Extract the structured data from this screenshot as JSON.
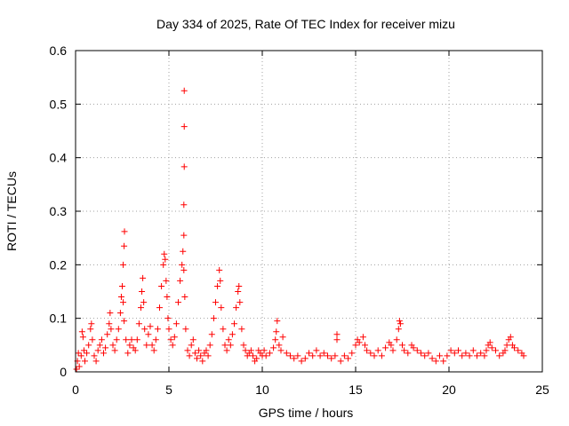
{
  "chart_data": {
    "type": "scatter",
    "title": "Day 334 of 2025, Rate Of TEC Index for receiver mizu",
    "xlabel": "GPS time / hours",
    "ylabel": "ROTI / TECUs",
    "xlim": [
      0,
      25
    ],
    "ylim": [
      0,
      0.6
    ],
    "xticks": [
      0,
      5,
      10,
      15,
      20,
      25
    ],
    "xtick_labels": [
      "0",
      "5",
      "10",
      "15",
      "20",
      "25"
    ],
    "yticks": [
      0,
      0.1,
      0.2,
      0.3,
      0.4,
      0.5,
      0.6
    ],
    "ytick_labels": [
      "0",
      "0.1",
      "0.2",
      "0.3",
      "0.4",
      "0.5",
      "0.6"
    ],
    "grid": true,
    "marker": "plus",
    "color": "#ff0000",
    "series": [
      {
        "points": [
          [
            0.05,
            0.005
          ],
          [
            0.1,
            0.02
          ],
          [
            0.15,
            0.035
          ],
          [
            0.2,
            0.01
          ],
          [
            0.3,
            0.03
          ],
          [
            0.35,
            0.075
          ],
          [
            0.4,
            0.065
          ],
          [
            0.45,
            0.04
          ],
          [
            0.5,
            0.02
          ],
          [
            0.6,
            0.035
          ],
          [
            0.7,
            0.05
          ],
          [
            0.8,
            0.08
          ],
          [
            0.85,
            0.09
          ],
          [
            0.9,
            0.06
          ],
          [
            1.0,
            0.03
          ],
          [
            1.1,
            0.02
          ],
          [
            1.2,
            0.04
          ],
          [
            1.3,
            0.05
          ],
          [
            1.4,
            0.06
          ],
          [
            1.5,
            0.035
          ],
          [
            1.6,
            0.045
          ],
          [
            1.7,
            0.07
          ],
          [
            1.8,
            0.09
          ],
          [
            1.85,
            0.11
          ],
          [
            1.9,
            0.08
          ],
          [
            2.0,
            0.05
          ],
          [
            2.1,
            0.04
          ],
          [
            2.2,
            0.06
          ],
          [
            2.3,
            0.08
          ],
          [
            2.4,
            0.11
          ],
          [
            2.45,
            0.14
          ],
          [
            2.5,
            0.16
          ],
          [
            2.55,
            0.13
          ],
          [
            2.6,
            0.095
          ],
          [
            2.55,
            0.2
          ],
          [
            2.6,
            0.235
          ],
          [
            2.62,
            0.262
          ],
          [
            2.7,
            0.06
          ],
          [
            2.8,
            0.035
          ],
          [
            2.9,
            0.05
          ],
          [
            3.0,
            0.06
          ],
          [
            3.1,
            0.045
          ],
          [
            3.2,
            0.04
          ],
          [
            3.3,
            0.06
          ],
          [
            3.4,
            0.09
          ],
          [
            3.5,
            0.12
          ],
          [
            3.55,
            0.15
          ],
          [
            3.6,
            0.175
          ],
          [
            3.65,
            0.13
          ],
          [
            3.7,
            0.08
          ],
          [
            3.8,
            0.05
          ],
          [
            3.9,
            0.07
          ],
          [
            4.0,
            0.085
          ],
          [
            4.1,
            0.05
          ],
          [
            4.2,
            0.04
          ],
          [
            4.3,
            0.06
          ],
          [
            4.4,
            0.08
          ],
          [
            4.5,
            0.12
          ],
          [
            4.6,
            0.16
          ],
          [
            4.7,
            0.2
          ],
          [
            4.75,
            0.22
          ],
          [
            4.8,
            0.21
          ],
          [
            4.85,
            0.17
          ],
          [
            4.9,
            0.14
          ],
          [
            4.95,
            0.1
          ],
          [
            5.0,
            0.08
          ],
          [
            5.1,
            0.06
          ],
          [
            5.2,
            0.05
          ],
          [
            5.3,
            0.065
          ],
          [
            5.4,
            0.09
          ],
          [
            5.5,
            0.13
          ],
          [
            5.6,
            0.17
          ],
          [
            5.7,
            0.2
          ],
          [
            5.75,
            0.225
          ],
          [
            5.8,
            0.19
          ],
          [
            5.85,
            0.14
          ],
          [
            5.8,
            0.255
          ],
          [
            5.8,
            0.312
          ],
          [
            5.82,
            0.383
          ],
          [
            5.82,
            0.458
          ],
          [
            5.82,
            0.525
          ],
          [
            5.9,
            0.08
          ],
          [
            6.0,
            0.04
          ],
          [
            6.1,
            0.03
          ],
          [
            6.2,
            0.05
          ],
          [
            6.3,
            0.06
          ],
          [
            6.4,
            0.035
          ],
          [
            6.5,
            0.025
          ],
          [
            6.6,
            0.04
          ],
          [
            6.7,
            0.03
          ],
          [
            6.8,
            0.02
          ],
          [
            6.9,
            0.035
          ],
          [
            7.0,
            0.04
          ],
          [
            7.1,
            0.03
          ],
          [
            7.2,
            0.05
          ],
          [
            7.3,
            0.07
          ],
          [
            7.4,
            0.1
          ],
          [
            7.5,
            0.13
          ],
          [
            7.6,
            0.16
          ],
          [
            7.7,
            0.19
          ],
          [
            7.75,
            0.17
          ],
          [
            7.8,
            0.12
          ],
          [
            7.9,
            0.08
          ],
          [
            8.0,
            0.05
          ],
          [
            8.1,
            0.04
          ],
          [
            8.2,
            0.06
          ],
          [
            8.3,
            0.05
          ],
          [
            8.4,
            0.07
          ],
          [
            8.5,
            0.09
          ],
          [
            8.6,
            0.12
          ],
          [
            8.7,
            0.15
          ],
          [
            8.75,
            0.16
          ],
          [
            8.8,
            0.13
          ],
          [
            8.9,
            0.08
          ],
          [
            9.0,
            0.05
          ],
          [
            9.1,
            0.04
          ],
          [
            9.2,
            0.03
          ],
          [
            9.3,
            0.035
          ],
          [
            9.4,
            0.04
          ],
          [
            9.5,
            0.03
          ],
          [
            9.6,
            0.02
          ],
          [
            9.7,
            0.025
          ],
          [
            9.8,
            0.04
          ],
          [
            9.9,
            0.035
          ],
          [
            10.0,
            0.03
          ],
          [
            10.1,
            0.04
          ],
          [
            10.2,
            0.03
          ],
          [
            10.4,
            0.035
          ],
          [
            10.6,
            0.045
          ],
          [
            10.7,
            0.06
          ],
          [
            10.75,
            0.075
          ],
          [
            10.8,
            0.095
          ],
          [
            10.9,
            0.05
          ],
          [
            11.0,
            0.04
          ],
          [
            11.1,
            0.065
          ],
          [
            11.3,
            0.035
          ],
          [
            11.5,
            0.03
          ],
          [
            11.7,
            0.025
          ],
          [
            11.9,
            0.03
          ],
          [
            12.1,
            0.02
          ],
          [
            12.3,
            0.025
          ],
          [
            12.5,
            0.035
          ],
          [
            12.7,
            0.03
          ],
          [
            12.9,
            0.04
          ],
          [
            13.1,
            0.03
          ],
          [
            13.3,
            0.035
          ],
          [
            13.5,
            0.03
          ],
          [
            13.7,
            0.025
          ],
          [
            13.9,
            0.03
          ],
          [
            14.0,
            0.07
          ],
          [
            14.0,
            0.06
          ],
          [
            14.2,
            0.02
          ],
          [
            14.4,
            0.03
          ],
          [
            14.6,
            0.025
          ],
          [
            14.8,
            0.035
          ],
          [
            15.0,
            0.05
          ],
          [
            15.1,
            0.06
          ],
          [
            15.2,
            0.055
          ],
          [
            15.4,
            0.065
          ],
          [
            15.5,
            0.05
          ],
          [
            15.6,
            0.04
          ],
          [
            15.8,
            0.035
          ],
          [
            16.0,
            0.03
          ],
          [
            16.2,
            0.04
          ],
          [
            16.4,
            0.03
          ],
          [
            16.6,
            0.045
          ],
          [
            16.8,
            0.055
          ],
          [
            16.9,
            0.05
          ],
          [
            17.0,
            0.04
          ],
          [
            17.2,
            0.06
          ],
          [
            17.3,
            0.08
          ],
          [
            17.35,
            0.095
          ],
          [
            17.4,
            0.09
          ],
          [
            17.5,
            0.05
          ],
          [
            17.6,
            0.04
          ],
          [
            17.8,
            0.035
          ],
          [
            18.0,
            0.05
          ],
          [
            18.1,
            0.045
          ],
          [
            18.3,
            0.04
          ],
          [
            18.5,
            0.035
          ],
          [
            18.7,
            0.03
          ],
          [
            18.9,
            0.035
          ],
          [
            19.1,
            0.025
          ],
          [
            19.3,
            0.02
          ],
          [
            19.5,
            0.03
          ],
          [
            19.7,
            0.02
          ],
          [
            19.9,
            0.03
          ],
          [
            20.1,
            0.04
          ],
          [
            20.3,
            0.035
          ],
          [
            20.5,
            0.04
          ],
          [
            20.7,
            0.03
          ],
          [
            20.9,
            0.035
          ],
          [
            21.1,
            0.03
          ],
          [
            21.3,
            0.04
          ],
          [
            21.5,
            0.03
          ],
          [
            21.7,
            0.035
          ],
          [
            21.9,
            0.03
          ],
          [
            22.0,
            0.04
          ],
          [
            22.1,
            0.05
          ],
          [
            22.2,
            0.055
          ],
          [
            22.3,
            0.045
          ],
          [
            22.5,
            0.04
          ],
          [
            22.7,
            0.03
          ],
          [
            22.9,
            0.035
          ],
          [
            23.0,
            0.04
          ],
          [
            23.1,
            0.05
          ],
          [
            23.2,
            0.06
          ],
          [
            23.3,
            0.065
          ],
          [
            23.4,
            0.05
          ],
          [
            23.5,
            0.045
          ],
          [
            23.7,
            0.04
          ],
          [
            23.9,
            0.035
          ],
          [
            24.0,
            0.03
          ]
        ]
      }
    ]
  }
}
